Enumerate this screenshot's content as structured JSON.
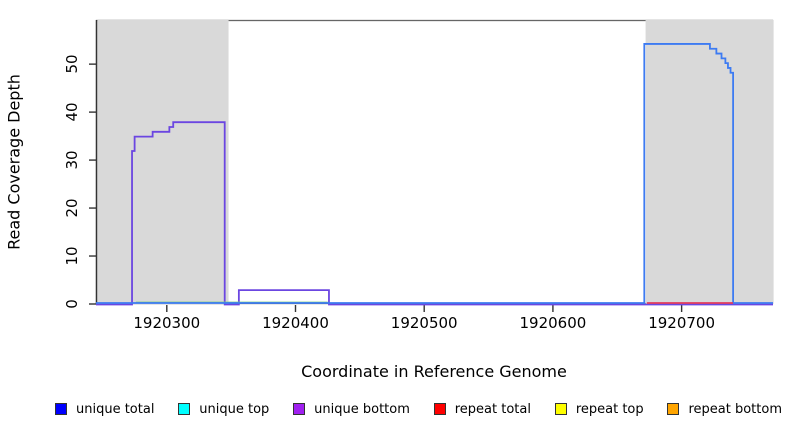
{
  "figure": {
    "y_axis_label": "Read Coverage Depth",
    "x_axis_label": "Coordinate in Reference Genome"
  },
  "chart_data": {
    "type": "line",
    "subtype": "step-coverage",
    "title": "",
    "xlabel": "Coordinate in Reference Genome",
    "ylabel": "Read Coverage Depth",
    "xlim": [
      1920245,
      1920771
    ],
    "ylim": [
      0,
      59.2
    ],
    "grid": false,
    "background_color": "#ffffff",
    "shaded_region_color": "#d9d9d9",
    "border_color": "#666666",
    "axis_color": "#333333",
    "x_ticks": {
      "values": [
        1920300,
        1920400,
        1920500,
        1920600,
        1920700
      ],
      "labels": [
        "1920300",
        "1920400",
        "1920500",
        "1920600",
        "1920700"
      ]
    },
    "y_ticks": {
      "values": [
        0,
        10,
        20,
        30,
        40,
        50
      ],
      "labels": [
        "0",
        "10",
        "20",
        "30",
        "40",
        "50"
      ]
    },
    "shaded_regions": [
      {
        "name": "left-gray-region",
        "x0": 1920246,
        "x1": 1920348
      },
      {
        "name": "right-gray-region",
        "x0": 1920672,
        "x1": 1920771
      }
    ],
    "series": [
      {
        "name": "unique bottom",
        "draw_color": "#6b46e1",
        "points": [
          [
            1920245,
            0
          ],
          [
            1920273,
            32
          ],
          [
            1920275,
            35
          ],
          [
            1920289,
            36
          ],
          [
            1920302,
            37
          ],
          [
            1920305,
            38
          ],
          [
            1920345,
            0
          ],
          [
            1920356,
            3
          ],
          [
            1920426,
            0
          ],
          [
            1920771,
            0
          ]
        ]
      },
      {
        "name": "unique top",
        "draw_color": "#7ccd7c",
        "points": [
          [
            1920276,
            0
          ],
          [
            1920425,
            0
          ]
        ]
      },
      {
        "name": "unique total",
        "draw_color": "#3d7bf2",
        "points": [
          [
            1920245,
            0
          ],
          [
            1920671,
            54
          ],
          [
            1920722,
            53
          ],
          [
            1920727,
            52
          ],
          [
            1920731,
            51
          ],
          [
            1920734,
            50
          ],
          [
            1920736,
            49
          ],
          [
            1920738,
            48
          ],
          [
            1920740,
            0
          ],
          [
            1920771,
            0
          ]
        ]
      },
      {
        "name": "repeat total",
        "draw_color": "#e23b5c",
        "points": [
          [
            1920673,
            0
          ],
          [
            1920740,
            0
          ]
        ]
      }
    ],
    "legend": {
      "position": "bottom",
      "items": [
        {
          "label": "unique total",
          "color": "#0000ff"
        },
        {
          "label": "unique top",
          "color": "#00ffff"
        },
        {
          "label": "unique bottom",
          "color": "#a020f0"
        },
        {
          "label": "repeat total",
          "color": "#ff0000"
        },
        {
          "label": "repeat top",
          "color": "#ffff00"
        },
        {
          "label": "repeat bottom",
          "color": "#ffa500"
        }
      ]
    }
  }
}
